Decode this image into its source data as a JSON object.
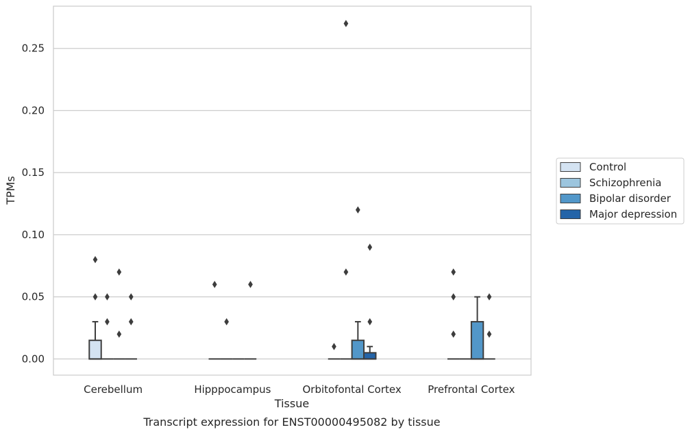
{
  "chart_data": {
    "type": "box",
    "title": "",
    "caption": "Transcript expression for ENST00000495082 by tissue",
    "xlabel": "Tissue",
    "ylabel": "TPMs",
    "ylim": [
      -0.013,
      0.284
    ],
    "yticks": [
      0.0,
      0.05,
      0.1,
      0.15,
      0.2,
      0.25
    ],
    "ytick_labels": [
      "0.00",
      "0.05",
      "0.10",
      "0.15",
      "0.20",
      "0.25"
    ],
    "grid": "horizontal",
    "legend_position": "right",
    "categories": [
      "Cerebellum",
      "Hipppocampus",
      "Orbitofontal Cortex",
      "Prefrontal Cortex"
    ],
    "series": [
      {
        "name": "Control",
        "color": "#d4e3f2",
        "boxes": [
          {
            "q1": 0,
            "median": 0,
            "q3": 0.015,
            "whisker_low": 0,
            "whisker_high": 0.03,
            "outliers": [
              0.05,
              0.08
            ]
          },
          {
            "q1": 0,
            "median": 0,
            "q3": 0,
            "whisker_low": 0,
            "whisker_high": 0,
            "outliers": [
              0.06
            ]
          },
          {
            "q1": 0,
            "median": 0,
            "q3": 0,
            "whisker_low": 0,
            "whisker_high": 0,
            "outliers": [
              0.01
            ]
          },
          {
            "q1": 0,
            "median": 0,
            "q3": 0,
            "whisker_low": 0,
            "whisker_high": 0,
            "outliers": [
              0.02,
              0.05,
              0.07
            ]
          }
        ]
      },
      {
        "name": "Schizophrenia",
        "color": "#9cc5de",
        "boxes": [
          {
            "q1": 0,
            "median": 0,
            "q3": 0,
            "whisker_low": 0,
            "whisker_high": 0,
            "outliers": [
              0.03,
              0.05
            ]
          },
          {
            "q1": 0,
            "median": 0,
            "q3": 0,
            "whisker_low": 0,
            "whisker_high": 0,
            "outliers": [
              0.03
            ]
          },
          {
            "q1": 0,
            "median": 0,
            "q3": 0,
            "whisker_low": 0,
            "whisker_high": 0,
            "outliers": [
              0.07,
              0.27
            ]
          },
          {
            "q1": 0,
            "median": 0,
            "q3": 0,
            "whisker_low": 0,
            "whisker_high": 0,
            "outliers": []
          }
        ]
      },
      {
        "name": "Bipolar disorder",
        "color": "#5297c9",
        "boxes": [
          {
            "q1": 0,
            "median": 0,
            "q3": 0,
            "whisker_low": 0,
            "whisker_high": 0,
            "outliers": [
              0.02,
              0.07
            ]
          },
          {
            "q1": 0,
            "median": 0,
            "q3": 0,
            "whisker_low": 0,
            "whisker_high": 0,
            "outliers": []
          },
          {
            "q1": 0,
            "median": 0,
            "q3": 0.015,
            "whisker_low": 0,
            "whisker_high": 0.03,
            "outliers": [
              0.12
            ]
          },
          {
            "q1": 0,
            "median": 0,
            "q3": 0.03,
            "whisker_low": 0,
            "whisker_high": 0.05,
            "outliers": []
          }
        ]
      },
      {
        "name": "Major depression",
        "color": "#2464a8",
        "boxes": [
          {
            "q1": 0,
            "median": 0,
            "q3": 0,
            "whisker_low": 0,
            "whisker_high": 0,
            "outliers": [
              0.03,
              0.05
            ]
          },
          {
            "q1": 0,
            "median": 0,
            "q3": 0,
            "whisker_low": 0,
            "whisker_high": 0,
            "outliers": [
              0.06
            ]
          },
          {
            "q1": 0,
            "median": 0,
            "q3": 0.005,
            "whisker_low": 0,
            "whisker_high": 0.01,
            "outliers": [
              0.03,
              0.09
            ]
          },
          {
            "q1": 0,
            "median": 0,
            "q3": 0,
            "whisker_low": 0,
            "whisker_high": 0,
            "outliers": [
              0.02,
              0.05
            ]
          }
        ]
      }
    ]
  }
}
